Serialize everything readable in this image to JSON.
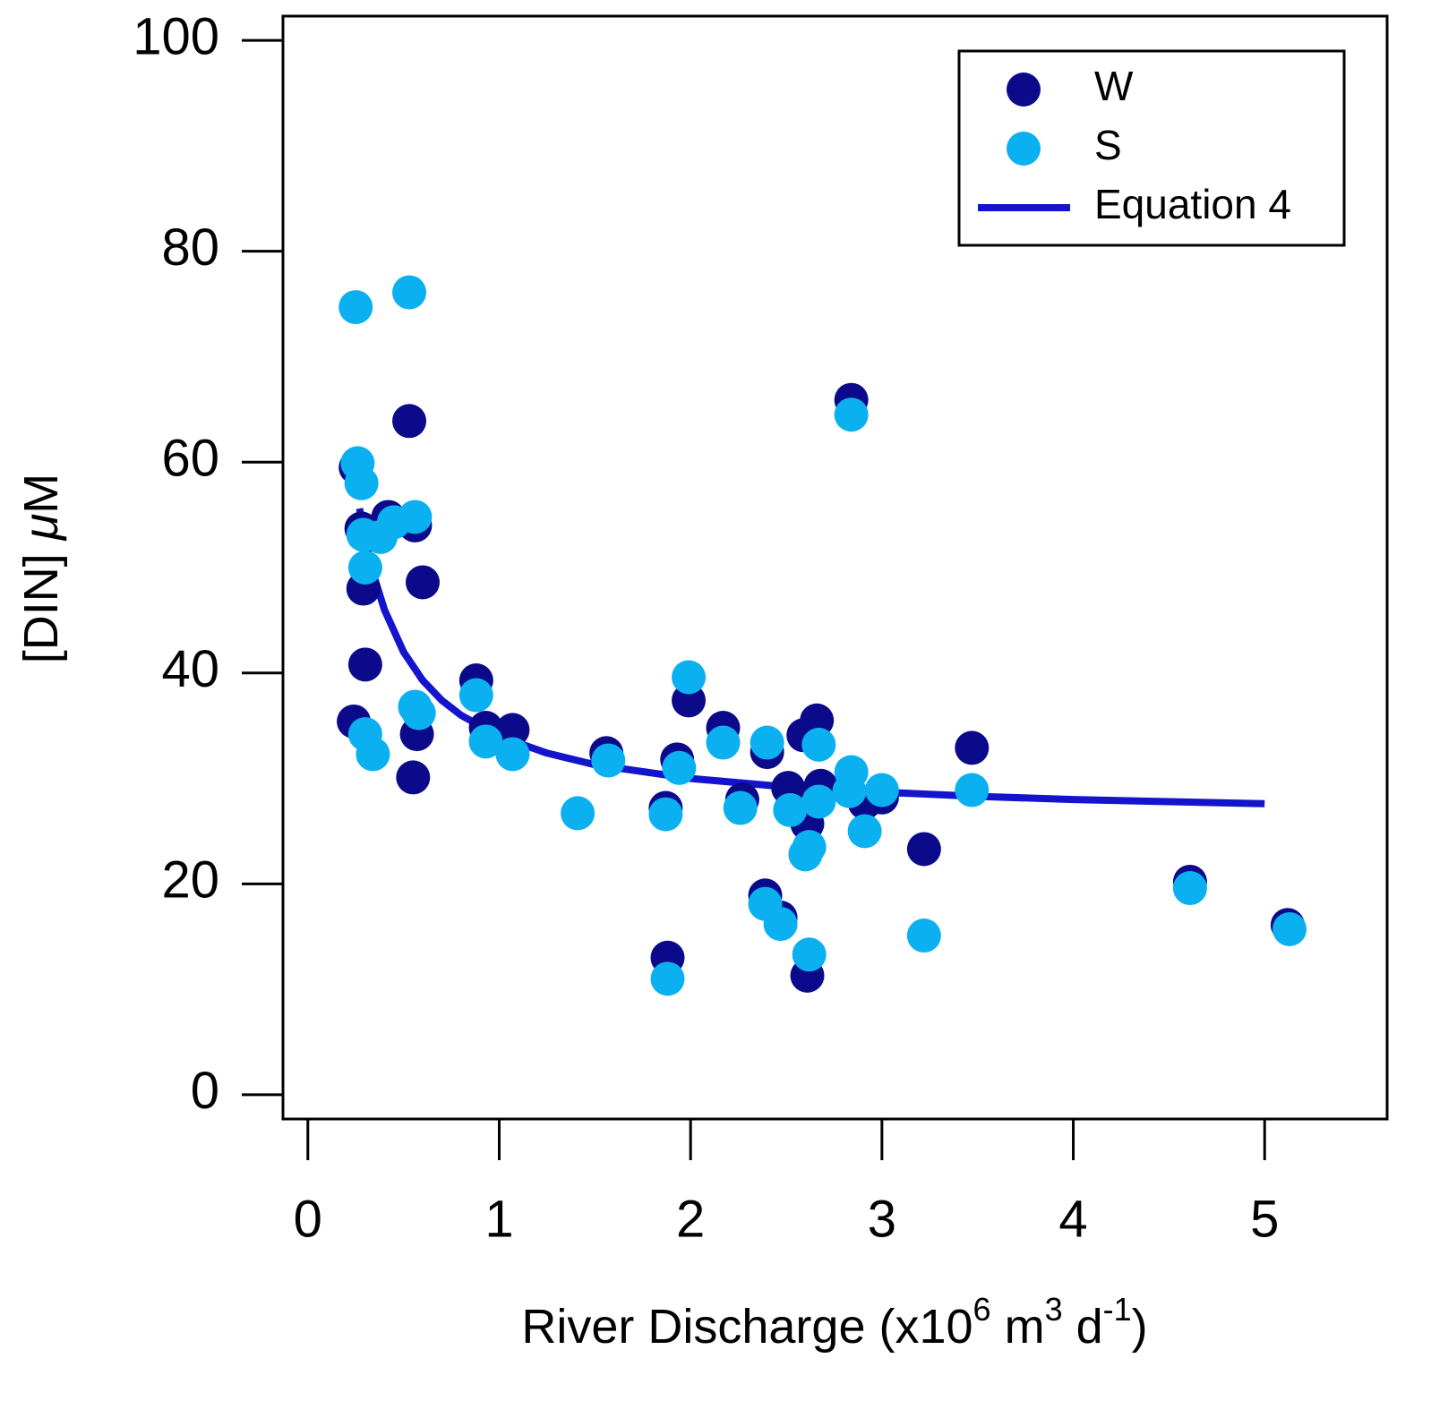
{
  "chart_data": {
    "type": "scatter",
    "xlabel_parts": [
      {
        "text": "River Discharge (x10"
      },
      {
        "text": "6",
        "sup": true
      },
      {
        "text": " m"
      },
      {
        "text": "3",
        "sup": true
      },
      {
        "text": " d"
      },
      {
        "text": "-1",
        "sup": true
      },
      {
        "text": ")"
      }
    ],
    "ylabel_parts": [
      {
        "text": "[DIN] "
      },
      {
        "text": "μ",
        "italic": true
      },
      {
        "text": "M"
      }
    ],
    "xlim": [
      -0.13,
      5.64
    ],
    "ylim": [
      -2.3,
      102.3
    ],
    "xticks": [
      0,
      1,
      2,
      3,
      4,
      5
    ],
    "yticks": [
      0,
      20,
      40,
      60,
      80,
      100
    ],
    "legend": "upper right",
    "series": [
      {
        "name": "W",
        "type": "scatter",
        "color": "#0a0a8a",
        "x": [
          0.25,
          0.28,
          0.29,
          0.3,
          0.24,
          0.42,
          0.53,
          0.56,
          0.6,
          0.57,
          0.55,
          0.88,
          0.93,
          1.07,
          1.56,
          1.87,
          1.88,
          1.93,
          1.99,
          2.17,
          2.27,
          2.4,
          2.39,
          2.47,
          2.51,
          2.59,
          2.61,
          2.61,
          2.66,
          2.68,
          2.84,
          2.91,
          3.0,
          3.22,
          3.47,
          4.61,
          5.12
        ],
        "values": [
          59.5,
          53.7,
          48.0,
          40.8,
          35.4,
          54.8,
          63.9,
          54.0,
          48.6,
          34.2,
          30.1,
          39.3,
          34.8,
          34.6,
          32.4,
          27.2,
          13.0,
          31.8,
          37.4,
          34.8,
          28.0,
          32.5,
          18.9,
          16.8,
          29.1,
          34.1,
          25.7,
          11.3,
          35.5,
          29.3,
          65.9,
          27.7,
          28.2,
          23.3,
          32.9,
          20.2,
          16.1
        ]
      },
      {
        "name": "S",
        "type": "scatter",
        "color": "#0ab0f0",
        "x": [
          0.25,
          0.53,
          0.26,
          0.28,
          0.29,
          0.3,
          0.38,
          0.45,
          0.56,
          0.3,
          0.34,
          0.56,
          0.58,
          0.88,
          0.93,
          1.07,
          1.41,
          1.57,
          1.87,
          1.88,
          1.94,
          1.99,
          2.17,
          2.26,
          2.4,
          2.39,
          2.47,
          2.52,
          2.62,
          2.6,
          2.62,
          2.67,
          2.67,
          2.84,
          2.84,
          2.91,
          3.0,
          2.83,
          3.22,
          3.47,
          4.61,
          5.13
        ],
        "values": [
          74.7,
          76.1,
          59.9,
          58.0,
          53.1,
          50.0,
          52.9,
          54.3,
          54.8,
          34.2,
          32.3,
          36.8,
          36.2,
          37.9,
          33.5,
          32.3,
          26.7,
          31.7,
          26.6,
          11.0,
          31.0,
          39.6,
          33.4,
          27.2,
          33.4,
          18.1,
          16.2,
          27.0,
          23.5,
          22.8,
          13.3,
          33.2,
          27.8,
          30.6,
          64.5,
          25.0,
          28.9,
          28.8,
          15.1,
          28.9,
          19.6,
          15.7
        ]
      },
      {
        "name": "Equation 4",
        "type": "line",
        "color": "#1414cc",
        "x": [
          0.27,
          0.3,
          0.35,
          0.4,
          0.5,
          0.6,
          0.7,
          0.8,
          1,
          1.25,
          1.5,
          2,
          2.5,
          3,
          3.5,
          4,
          4.5,
          5
        ],
        "values": [
          55.6,
          52.7,
          48.9,
          46.0,
          42.0,
          39.3,
          37.4,
          36.0,
          34.0,
          32.4,
          31.3,
          30.0,
          29.2,
          28.7,
          28.3,
          28.0,
          27.8,
          27.6
        ]
      }
    ]
  }
}
